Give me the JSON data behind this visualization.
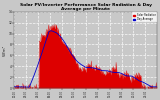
{
  "title": "Solar PV/Inverter Performance Solar Radiation & Day Average per Minute",
  "title_fontsize": 3.2,
  "background_color": "#c8c8c8",
  "plot_bg_color": "#c8c8c8",
  "bar_color": "#dd0000",
  "legend_labels": [
    "Solar Radiation",
    "Day Average"
  ],
  "legend_colors": [
    "#dd0000",
    "#0000cc"
  ],
  "ylabel": "W/m²",
  "ylabel_fontsize": 3.0,
  "ylim": [
    0,
    1400
  ],
  "ytick_labels": [
    "0",
    "2",
    "4",
    "6",
    "8",
    "10",
    "12",
    "14"
  ],
  "ytick_vals": [
    0,
    200,
    400,
    600,
    800,
    1000,
    1200,
    1400
  ],
  "xlim": [
    0,
    288
  ],
  "grid_color": "#ffffff",
  "num_points": 288,
  "figsize": [
    1.6,
    1.0
  ],
  "dpi": 100
}
